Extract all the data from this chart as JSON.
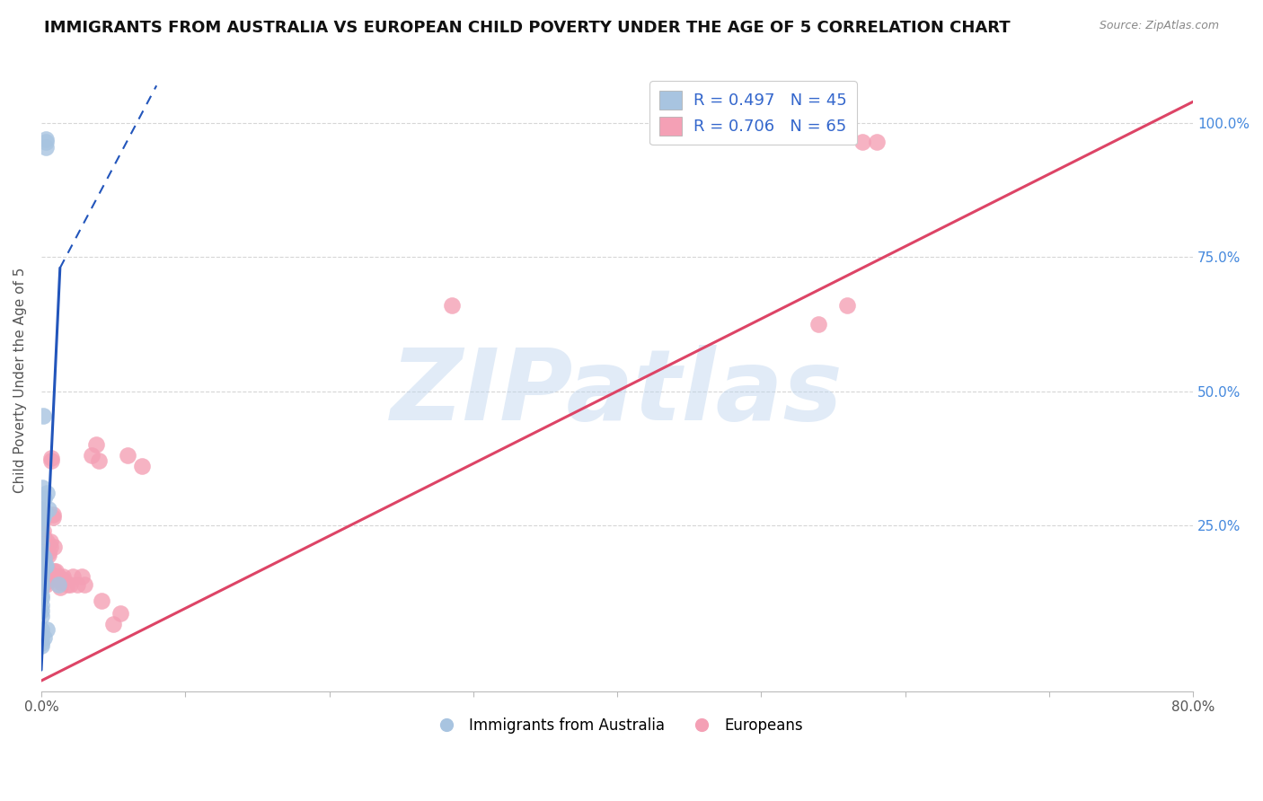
{
  "title": "IMMIGRANTS FROM AUSTRALIA VS EUROPEAN CHILD POVERTY UNDER THE AGE OF 5 CORRELATION CHART",
  "source": "Source: ZipAtlas.com",
  "ylabel": "Child Poverty Under the Age of 5",
  "ytick_labels": [
    "25.0%",
    "50.0%",
    "75.0%",
    "100.0%"
  ],
  "ytick_values": [
    0.25,
    0.5,
    0.75,
    1.0
  ],
  "xlim": [
    0.0,
    80.0
  ],
  "ylim": [
    -0.06,
    1.1
  ],
  "legend_r1": "R = 0.497   N = 45",
  "legend_r2": "R = 0.706   N = 65",
  "watermark": "ZIPatlas",
  "blue_color": "#a8c4e0",
  "pink_color": "#f4a0b5",
  "blue_line_color": "#2255bb",
  "pink_line_color": "#dd4466",
  "blue_scatter": [
    [
      0.1,
      0.28
    ],
    [
      0.12,
      0.265
    ],
    [
      0.2,
      0.19
    ],
    [
      0.28,
      0.175
    ],
    [
      0.3,
      0.175
    ],
    [
      0.4,
      0.31
    ],
    [
      0.5,
      0.28
    ],
    [
      0.32,
      0.97
    ],
    [
      0.33,
      0.955
    ],
    [
      0.34,
      0.965
    ],
    [
      0.22,
      0.3
    ],
    [
      0.15,
      0.455
    ],
    [
      0.08,
      0.32
    ],
    [
      0.09,
      0.3
    ],
    [
      0.13,
      0.27
    ],
    [
      0.14,
      0.27
    ],
    [
      0.21,
      0.275
    ],
    [
      0.23,
      0.275
    ],
    [
      0.03,
      0.27
    ],
    [
      0.03,
      0.265
    ],
    [
      0.03,
      0.255
    ],
    [
      0.03,
      0.245
    ],
    [
      0.03,
      0.215
    ],
    [
      0.03,
      0.23
    ],
    [
      0.03,
      0.2
    ],
    [
      0.03,
      0.195
    ],
    [
      0.03,
      0.185
    ],
    [
      0.03,
      0.17
    ],
    [
      0.03,
      0.16
    ],
    [
      0.03,
      0.155
    ],
    [
      0.03,
      0.145
    ],
    [
      0.03,
      0.14
    ],
    [
      0.03,
      0.135
    ],
    [
      0.03,
      0.12
    ],
    [
      0.03,
      0.115
    ],
    [
      0.03,
      0.1
    ],
    [
      0.03,
      0.09
    ],
    [
      0.03,
      0.08
    ],
    [
      0.03,
      0.055
    ],
    [
      0.03,
      0.04
    ],
    [
      0.03,
      0.03
    ],
    [
      0.03,
      0.025
    ],
    [
      0.2,
      0.04
    ],
    [
      0.4,
      0.055
    ],
    [
      1.2,
      0.14
    ]
  ],
  "pink_scatter": [
    [
      0.03,
      0.28
    ],
    [
      0.05,
      0.275
    ],
    [
      0.1,
      0.265
    ],
    [
      0.1,
      0.26
    ],
    [
      0.1,
      0.24
    ],
    [
      0.1,
      0.23
    ],
    [
      0.15,
      0.22
    ],
    [
      0.15,
      0.215
    ],
    [
      0.2,
      0.21
    ],
    [
      0.2,
      0.2
    ],
    [
      0.2,
      0.195
    ],
    [
      0.2,
      0.185
    ],
    [
      0.2,
      0.175
    ],
    [
      0.2,
      0.17
    ],
    [
      0.3,
      0.165
    ],
    [
      0.3,
      0.165
    ],
    [
      0.3,
      0.155
    ],
    [
      0.3,
      0.15
    ],
    [
      0.3,
      0.145
    ],
    [
      0.3,
      0.14
    ],
    [
      0.4,
      0.22
    ],
    [
      0.4,
      0.21
    ],
    [
      0.4,
      0.165
    ],
    [
      0.4,
      0.155
    ],
    [
      0.5,
      0.2
    ],
    [
      0.5,
      0.195
    ],
    [
      0.5,
      0.165
    ],
    [
      0.5,
      0.155
    ],
    [
      0.6,
      0.22
    ],
    [
      0.6,
      0.21
    ],
    [
      0.7,
      0.37
    ],
    [
      0.7,
      0.375
    ],
    [
      0.8,
      0.27
    ],
    [
      0.8,
      0.265
    ],
    [
      0.9,
      0.21
    ],
    [
      0.9,
      0.165
    ],
    [
      1.0,
      0.165
    ],
    [
      1.0,
      0.155
    ],
    [
      1.1,
      0.155
    ],
    [
      1.1,
      0.15
    ],
    [
      1.2,
      0.155
    ],
    [
      1.2,
      0.15
    ],
    [
      1.3,
      0.145
    ],
    [
      1.3,
      0.135
    ],
    [
      1.5,
      0.155
    ],
    [
      1.5,
      0.15
    ],
    [
      1.8,
      0.14
    ],
    [
      2.0,
      0.14
    ],
    [
      2.2,
      0.155
    ],
    [
      2.5,
      0.14
    ],
    [
      2.8,
      0.155
    ],
    [
      3.0,
      0.14
    ],
    [
      3.5,
      0.38
    ],
    [
      3.8,
      0.4
    ],
    [
      4.0,
      0.37
    ],
    [
      4.2,
      0.11
    ],
    [
      5.0,
      0.065
    ],
    [
      5.5,
      0.085
    ],
    [
      6.0,
      0.38
    ],
    [
      7.0,
      0.36
    ],
    [
      28.5,
      0.66
    ],
    [
      54.0,
      0.625
    ],
    [
      56.0,
      0.66
    ],
    [
      57.0,
      0.965
    ],
    [
      58.0,
      0.965
    ]
  ],
  "blue_regression": {
    "x_solid_start": 0.0,
    "x_solid_end": 1.3,
    "y_solid_start": -0.02,
    "y_solid_end": 0.73,
    "x_dash_start": 1.3,
    "x_dash_end": 8.0,
    "y_dash_start": 0.73,
    "y_dash_end": 1.07
  },
  "pink_regression": {
    "x_start": 0.0,
    "x_end": 80.0,
    "y_start": -0.04,
    "y_end": 1.04
  }
}
